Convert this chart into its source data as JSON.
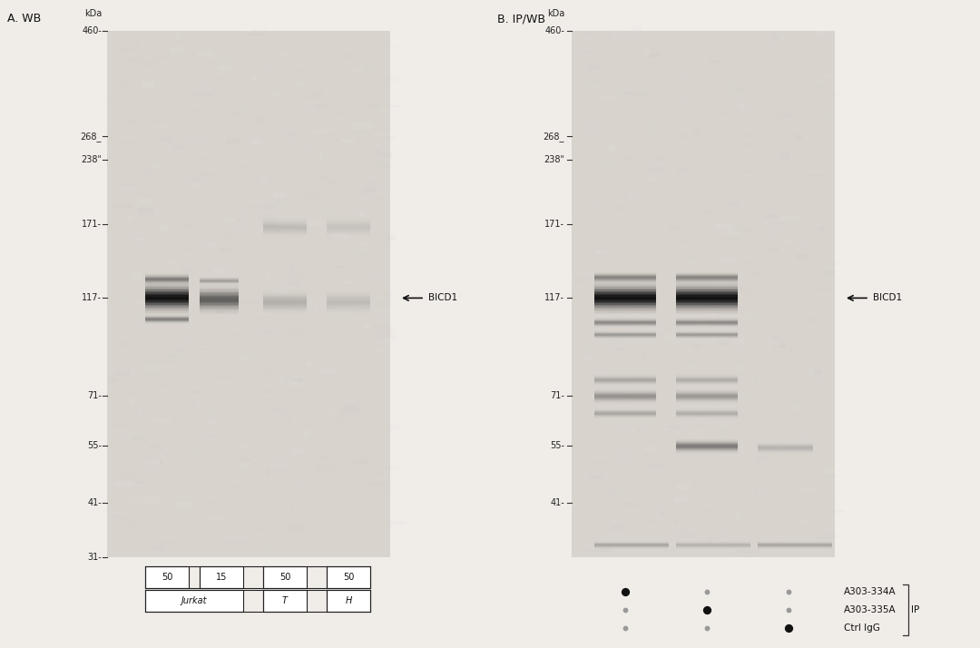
{
  "fig_bg": "#f0ece8",
  "gel_A_bg": "#d4cfc9",
  "gel_B_bg": "#d4cfc9",
  "title_A": "A. WB",
  "title_B": "B. IP/WB",
  "mw_A": [
    460,
    268,
    238,
    171,
    117,
    71,
    55,
    41,
    31
  ],
  "mw_B": [
    460,
    268,
    238,
    171,
    117,
    71,
    55,
    41
  ],
  "mw_dash": {
    "460": "-",
    "268": "_",
    "238": "\"",
    "171": "-",
    "117": "-",
    "71": "-",
    "55": "-",
    "41": "-",
    "31": "-"
  },
  "label_BICD1": "BICD1",
  "label_A303_334A": "A303-334A",
  "label_A303_335A": "A303-335A",
  "label_CtrlIgG": "Ctrl IgG",
  "label_IP": "IP",
  "lane_labels_row1": [
    "50",
    "15",
    "50",
    "50"
  ],
  "lane_labels_row2_left": "Jurkat",
  "lane_labels_row2_mid": "T",
  "lane_labels_row2_right": "H",
  "font_size_title": 9,
  "font_size_mw": 7,
  "font_size_label": 7.5,
  "font_size_annot": 7.5,
  "font_size_lane": 7
}
